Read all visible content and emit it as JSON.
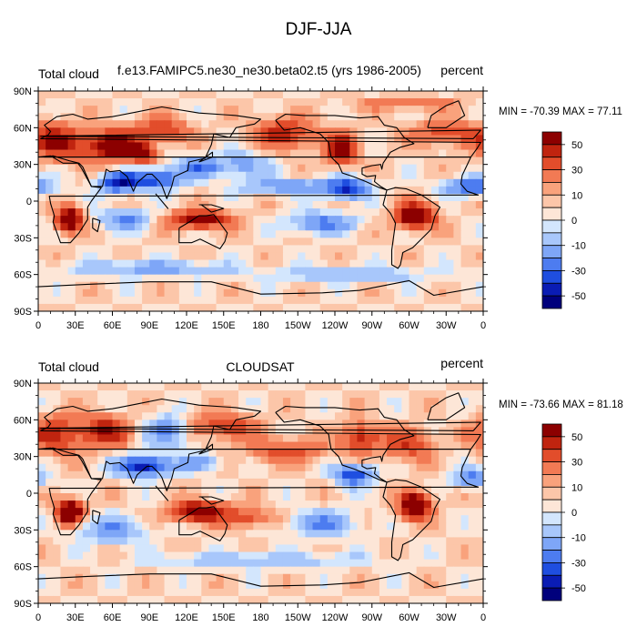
{
  "figure": {
    "title": "DJF-JJA"
  },
  "colorbar_labels": [
    "50",
    "30",
    "10",
    "0",
    "-10",
    "-30",
    "-50"
  ],
  "palette": [
    "#00007c",
    "#0a1cb4",
    "#1f4ee0",
    "#4d7cf0",
    "#7ea6f7",
    "#a8c7fb",
    "#d3e6fd",
    "#fde6d7",
    "#fcc6a9",
    "#f9a27c",
    "#f27a54",
    "#e24d2b",
    "#c0240f",
    "#8c0000"
  ],
  "panels": [
    {
      "left_label": "Total cloud",
      "center_label": "f.e13.FAMIPC5.ne30_ne30.beta02.t5 (yrs 1986-2005)",
      "right_label": "percent",
      "stats": "MIN = -70.39 MAX =  77.11",
      "min": -70.39,
      "max": 77.11
    },
    {
      "left_label": "Total cloud",
      "center_label": "CLOUDSAT",
      "right_label": "percent",
      "stats": "MIN = -73.66 MAX =  81.18",
      "min": -73.66,
      "max": 81.18
    }
  ],
  "chart_data": {
    "type": "heatmap",
    "title": "DJF-JJA",
    "x_ticks": [
      "0",
      "30E",
      "60E",
      "90E",
      "120E",
      "150E",
      "180",
      "150W",
      "120W",
      "90W",
      "60W",
      "30W",
      "0"
    ],
    "y_ticks": [
      "90N",
      "60N",
      "30N",
      "0",
      "30S",
      "60S",
      "90S"
    ],
    "xlim": [
      0,
      360
    ],
    "ylim": [
      -90,
      90
    ],
    "colorbar_levels": [
      -60,
      -50,
      -40,
      -30,
      -20,
      -10,
      -5,
      0,
      5,
      10,
      20,
      30,
      40,
      50,
      60
    ],
    "units": "percent",
    "fields": [
      {
        "stats": "MIN = -70.39 MAX =  77.11",
        "anomalies": [
          {
            "lon": 15,
            "lat": 48,
            "amp": 40,
            "rlon": 20,
            "rlat": 14
          },
          {
            "lon": 60,
            "lat": 45,
            "amp": 55,
            "rlon": 22,
            "rlat": 12
          },
          {
            "lon": 85,
            "lat": 38,
            "amp": 35,
            "rlon": 10,
            "rlat": 8
          },
          {
            "lon": 100,
            "lat": 58,
            "amp": 30,
            "rlon": 20,
            "rlat": 10
          },
          {
            "lon": 65,
            "lat": 15,
            "amp": -55,
            "rlon": 15,
            "rlat": 8
          },
          {
            "lon": 95,
            "lat": 18,
            "amp": -50,
            "rlon": 20,
            "rlat": 8
          },
          {
            "lon": 130,
            "lat": 28,
            "amp": -35,
            "rlon": 18,
            "rlat": 8
          },
          {
            "lon": 165,
            "lat": 30,
            "amp": -25,
            "rlon": 20,
            "rlat": 10
          },
          {
            "lon": 205,
            "lat": 12,
            "amp": -30,
            "rlon": 40,
            "rlat": 6
          },
          {
            "lon": 250,
            "lat": 10,
            "amp": -50,
            "rlon": 16,
            "rlat": 8
          },
          {
            "lon": 350,
            "lat": 12,
            "amp": -45,
            "rlon": 20,
            "rlat": 7
          },
          {
            "lon": 200,
            "lat": 55,
            "amp": 35,
            "rlon": 25,
            "rlat": 12
          },
          {
            "lon": 245,
            "lat": 42,
            "amp": 50,
            "rlon": 12,
            "rlat": 12
          },
          {
            "lon": 330,
            "lat": 55,
            "amp": 25,
            "rlon": 30,
            "rlat": 10
          },
          {
            "lon": 25,
            "lat": -15,
            "amp": 70,
            "rlon": 10,
            "rlat": 9
          },
          {
            "lon": 130,
            "lat": -15,
            "amp": 55,
            "rlon": 22,
            "rlat": 7
          },
          {
            "lon": 305,
            "lat": -12,
            "amp": 65,
            "rlon": 15,
            "rlat": 10
          },
          {
            "lon": 70,
            "lat": -15,
            "amp": -30,
            "rlon": 20,
            "rlat": 8
          },
          {
            "lon": 230,
            "lat": -18,
            "amp": -35,
            "rlon": 25,
            "rlat": 8
          },
          {
            "lon": 90,
            "lat": -55,
            "amp": -25,
            "rlon": 60,
            "rlat": 6
          },
          {
            "lon": 250,
            "lat": -60,
            "amp": -20,
            "rlon": 60,
            "rlat": 6
          },
          {
            "lon": 300,
            "lat": 80,
            "amp": 20,
            "rlon": 40,
            "rlat": 5
          }
        ]
      },
      {
        "stats": "MIN = -73.66 MAX =  81.18",
        "anomalies": [
          {
            "lon": 15,
            "lat": 48,
            "amp": 35,
            "rlon": 22,
            "rlat": 14
          },
          {
            "lon": 55,
            "lat": 50,
            "amp": 40,
            "rlon": 18,
            "rlat": 12
          },
          {
            "lon": 150,
            "lat": 55,
            "amp": 30,
            "rlon": 25,
            "rlat": 10
          },
          {
            "lon": 85,
            "lat": 22,
            "amp": -65,
            "rlon": 20,
            "rlat": 8
          },
          {
            "lon": 105,
            "lat": 50,
            "amp": -35,
            "rlon": 15,
            "rlat": 12
          },
          {
            "lon": 130,
            "lat": 25,
            "amp": -30,
            "rlon": 15,
            "rlat": 7
          },
          {
            "lon": 255,
            "lat": 15,
            "amp": -50,
            "rlon": 15,
            "rlat": 8
          },
          {
            "lon": 350,
            "lat": 12,
            "amp": -35,
            "rlon": 15,
            "rlat": 7
          },
          {
            "lon": 200,
            "lat": 35,
            "amp": 25,
            "rlon": 30,
            "rlat": 10
          },
          {
            "lon": 260,
            "lat": 45,
            "amp": 35,
            "rlon": 15,
            "rlat": 12
          },
          {
            "lon": 300,
            "lat": 40,
            "amp": 30,
            "rlon": 20,
            "rlat": 12
          },
          {
            "lon": 25,
            "lat": -15,
            "amp": 75,
            "rlon": 10,
            "rlat": 9
          },
          {
            "lon": 130,
            "lat": -15,
            "amp": 55,
            "rlon": 22,
            "rlat": 8
          },
          {
            "lon": 305,
            "lat": -10,
            "amp": 70,
            "rlon": 12,
            "rlat": 10
          },
          {
            "lon": 60,
            "lat": -30,
            "amp": -30,
            "rlon": 25,
            "rlat": 10
          },
          {
            "lon": 230,
            "lat": -25,
            "amp": -30,
            "rlon": 25,
            "rlat": 10
          },
          {
            "lon": 170,
            "lat": -20,
            "amp": 25,
            "rlon": 20,
            "rlat": 8
          },
          {
            "lon": 180,
            "lat": -55,
            "amp": -20,
            "rlon": 80,
            "rlat": 6
          }
        ]
      }
    ]
  }
}
